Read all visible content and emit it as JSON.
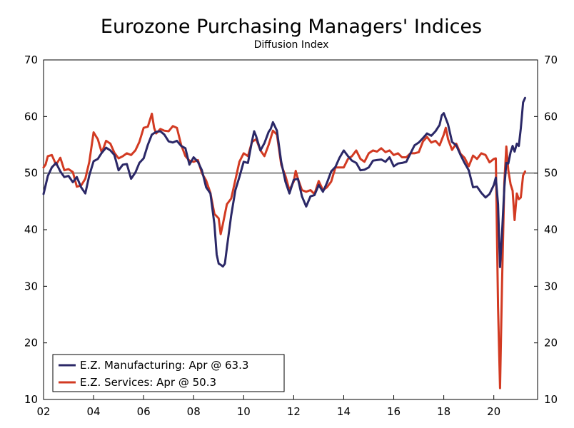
{
  "chart_data": {
    "type": "line",
    "title": "Eurozone Purchasing Managers' Indices",
    "subtitle": "Diffusion Index",
    "xlabel": "",
    "ylabel": "",
    "xlim": [
      2002.0,
      2021.75
    ],
    "ylim": [
      10,
      70
    ],
    "y_ticks": [
      10,
      20,
      30,
      40,
      50,
      60,
      70
    ],
    "x_ticks": [
      {
        "label": "02",
        "value": 2002
      },
      {
        "label": "04",
        "value": 2004
      },
      {
        "label": "06",
        "value": 2006
      },
      {
        "label": "08",
        "value": 2008
      },
      {
        "label": "10",
        "value": 2010
      },
      {
        "label": "12",
        "value": 2012
      },
      {
        "label": "14",
        "value": 2014
      },
      {
        "label": "16",
        "value": 2016
      },
      {
        "label": "18",
        "value": 2018
      },
      {
        "label": "20",
        "value": 2020
      }
    ],
    "reference_line": 50,
    "grid": false,
    "legend_position": "bottom-left",
    "series": [
      {
        "name": "E.Z. Manufacturing: Apr @ 63.3",
        "color": "#2b2867",
        "points": [
          [
            2002.0,
            46.3
          ],
          [
            2002.17,
            49.5
          ],
          [
            2002.33,
            51.0
          ],
          [
            2002.5,
            51.8
          ],
          [
            2002.67,
            50.3
          ],
          [
            2002.83,
            49.3
          ],
          [
            2003.0,
            49.5
          ],
          [
            2003.17,
            48.4
          ],
          [
            2003.33,
            49.3
          ],
          [
            2003.5,
            47.5
          ],
          [
            2003.67,
            46.4
          ],
          [
            2003.83,
            49.6
          ],
          [
            2004.0,
            52.1
          ],
          [
            2004.17,
            52.5
          ],
          [
            2004.33,
            53.6
          ],
          [
            2004.5,
            54.5
          ],
          [
            2004.67,
            54.0
          ],
          [
            2004.83,
            53.2
          ],
          [
            2005.0,
            50.5
          ],
          [
            2005.17,
            51.5
          ],
          [
            2005.33,
            51.6
          ],
          [
            2005.5,
            49.0
          ],
          [
            2005.67,
            50.1
          ],
          [
            2005.83,
            51.8
          ],
          [
            2006.0,
            52.6
          ],
          [
            2006.17,
            55.0
          ],
          [
            2006.33,
            56.8
          ],
          [
            2006.5,
            57.3
          ],
          [
            2006.67,
            57.4
          ],
          [
            2006.83,
            56.8
          ],
          [
            2007.0,
            55.6
          ],
          [
            2007.17,
            55.4
          ],
          [
            2007.33,
            55.7
          ],
          [
            2007.5,
            54.8
          ],
          [
            2007.67,
            54.4
          ],
          [
            2007.83,
            51.5
          ],
          [
            2008.0,
            52.8
          ],
          [
            2008.17,
            52.0
          ],
          [
            2008.33,
            50.5
          ],
          [
            2008.5,
            47.5
          ],
          [
            2008.67,
            46.4
          ],
          [
            2008.83,
            41.0
          ],
          [
            2008.92,
            35.6
          ],
          [
            2009.0,
            34.0
          ],
          [
            2009.08,
            33.8
          ],
          [
            2009.17,
            33.5
          ],
          [
            2009.25,
            34.0
          ],
          [
            2009.33,
            36.8
          ],
          [
            2009.5,
            42.5
          ],
          [
            2009.67,
            47.0
          ],
          [
            2009.83,
            49.3
          ],
          [
            2010.0,
            52.0
          ],
          [
            2010.17,
            51.8
          ],
          [
            2010.33,
            55.6
          ],
          [
            2010.42,
            57.4
          ],
          [
            2010.5,
            56.5
          ],
          [
            2010.67,
            54.0
          ],
          [
            2010.83,
            55.3
          ],
          [
            2011.0,
            57.3
          ],
          [
            2011.08,
            57.8
          ],
          [
            2011.17,
            59.0
          ],
          [
            2011.33,
            57.5
          ],
          [
            2011.5,
            52.0
          ],
          [
            2011.67,
            48.5
          ],
          [
            2011.83,
            46.4
          ],
          [
            2012.0,
            48.8
          ],
          [
            2012.17,
            49.0
          ],
          [
            2012.33,
            45.9
          ],
          [
            2012.5,
            44.1
          ],
          [
            2012.67,
            45.9
          ],
          [
            2012.83,
            46.1
          ],
          [
            2013.0,
            47.9
          ],
          [
            2013.17,
            46.7
          ],
          [
            2013.33,
            48.3
          ],
          [
            2013.5,
            50.3
          ],
          [
            2013.67,
            51.1
          ],
          [
            2013.83,
            52.7
          ],
          [
            2014.0,
            54.0
          ],
          [
            2014.17,
            53.0
          ],
          [
            2014.33,
            52.2
          ],
          [
            2014.5,
            51.8
          ],
          [
            2014.67,
            50.5
          ],
          [
            2014.83,
            50.6
          ],
          [
            2015.0,
            51.0
          ],
          [
            2015.17,
            52.2
          ],
          [
            2015.33,
            52.3
          ],
          [
            2015.5,
            52.4
          ],
          [
            2015.67,
            52.0
          ],
          [
            2015.83,
            52.8
          ],
          [
            2016.0,
            51.2
          ],
          [
            2016.17,
            51.7
          ],
          [
            2016.33,
            51.8
          ],
          [
            2016.5,
            52.0
          ],
          [
            2016.67,
            53.5
          ],
          [
            2016.83,
            54.9
          ],
          [
            2017.0,
            55.4
          ],
          [
            2017.17,
            56.2
          ],
          [
            2017.33,
            57.0
          ],
          [
            2017.5,
            56.6
          ],
          [
            2017.67,
            57.4
          ],
          [
            2017.83,
            58.5
          ],
          [
            2017.92,
            60.2
          ],
          [
            2018.0,
            60.6
          ],
          [
            2018.17,
            58.6
          ],
          [
            2018.33,
            55.5
          ],
          [
            2018.5,
            54.9
          ],
          [
            2018.67,
            53.2
          ],
          [
            2018.83,
            51.8
          ],
          [
            2019.0,
            50.5
          ],
          [
            2019.17,
            47.5
          ],
          [
            2019.33,
            47.6
          ],
          [
            2019.5,
            46.5
          ],
          [
            2019.67,
            45.7
          ],
          [
            2019.83,
            46.3
          ],
          [
            2020.0,
            47.9
          ],
          [
            2020.08,
            49.2
          ],
          [
            2020.17,
            44.5
          ],
          [
            2020.25,
            33.4
          ],
          [
            2020.33,
            39.4
          ],
          [
            2020.42,
            47.4
          ],
          [
            2020.5,
            51.8
          ],
          [
            2020.58,
            51.7
          ],
          [
            2020.67,
            53.7
          ],
          [
            2020.75,
            54.8
          ],
          [
            2020.83,
            53.8
          ],
          [
            2020.92,
            55.2
          ],
          [
            2021.0,
            54.8
          ],
          [
            2021.08,
            57.9
          ],
          [
            2021.17,
            62.5
          ],
          [
            2021.25,
            63.3
          ]
        ]
      },
      {
        "name": "E.Z. Services: Apr @ 50.3",
        "color": "#d23a22",
        "points": [
          [
            2002.0,
            51.0
          ],
          [
            2002.08,
            51.5
          ],
          [
            2002.17,
            53.0
          ],
          [
            2002.33,
            53.2
          ],
          [
            2002.5,
            51.5
          ],
          [
            2002.67,
            52.7
          ],
          [
            2002.83,
            50.5
          ],
          [
            2003.0,
            50.7
          ],
          [
            2003.17,
            50.2
          ],
          [
            2003.33,
            47.6
          ],
          [
            2003.5,
            47.8
          ],
          [
            2003.67,
            49.0
          ],
          [
            2003.83,
            52.0
          ],
          [
            2004.0,
            57.2
          ],
          [
            2004.17,
            56.0
          ],
          [
            2004.33,
            53.6
          ],
          [
            2004.5,
            55.7
          ],
          [
            2004.67,
            55.2
          ],
          [
            2004.83,
            53.6
          ],
          [
            2005.0,
            52.6
          ],
          [
            2005.17,
            53.0
          ],
          [
            2005.33,
            53.5
          ],
          [
            2005.5,
            53.2
          ],
          [
            2005.67,
            54.0
          ],
          [
            2005.83,
            55.5
          ],
          [
            2006.0,
            58.0
          ],
          [
            2006.17,
            58.2
          ],
          [
            2006.33,
            60.5
          ],
          [
            2006.42,
            58.0
          ],
          [
            2006.5,
            57.0
          ],
          [
            2006.67,
            57.8
          ],
          [
            2006.83,
            57.5
          ],
          [
            2007.0,
            57.4
          ],
          [
            2007.17,
            58.3
          ],
          [
            2007.33,
            58.0
          ],
          [
            2007.5,
            55.0
          ],
          [
            2007.67,
            53.0
          ],
          [
            2007.83,
            52.2
          ],
          [
            2008.0,
            52.0
          ],
          [
            2008.17,
            52.3
          ],
          [
            2008.33,
            50.0
          ],
          [
            2008.5,
            48.7
          ],
          [
            2008.67,
            46.5
          ],
          [
            2008.83,
            42.8
          ],
          [
            2009.0,
            42.0
          ],
          [
            2009.08,
            39.2
          ],
          [
            2009.17,
            41.0
          ],
          [
            2009.33,
            44.5
          ],
          [
            2009.5,
            45.5
          ],
          [
            2009.67,
            48.8
          ],
          [
            2009.83,
            52.0
          ],
          [
            2010.0,
            53.5
          ],
          [
            2010.17,
            53.0
          ],
          [
            2010.33,
            55.5
          ],
          [
            2010.5,
            56.0
          ],
          [
            2010.67,
            54.0
          ],
          [
            2010.83,
            53.0
          ],
          [
            2011.0,
            55.0
          ],
          [
            2011.17,
            57.5
          ],
          [
            2011.33,
            56.8
          ],
          [
            2011.5,
            51.5
          ],
          [
            2011.67,
            49.5
          ],
          [
            2011.83,
            47.0
          ],
          [
            2012.0,
            48.5
          ],
          [
            2012.08,
            50.4
          ],
          [
            2012.17,
            49.0
          ],
          [
            2012.33,
            47.0
          ],
          [
            2012.5,
            46.7
          ],
          [
            2012.67,
            47.0
          ],
          [
            2012.83,
            46.3
          ],
          [
            2013.0,
            48.6
          ],
          [
            2013.17,
            47.0
          ],
          [
            2013.33,
            47.5
          ],
          [
            2013.5,
            48.5
          ],
          [
            2013.67,
            51.0
          ],
          [
            2013.83,
            51.0
          ],
          [
            2014.0,
            51.0
          ],
          [
            2014.17,
            52.5
          ],
          [
            2014.33,
            53.0
          ],
          [
            2014.5,
            54.0
          ],
          [
            2014.67,
            52.5
          ],
          [
            2014.83,
            52.0
          ],
          [
            2015.0,
            53.5
          ],
          [
            2015.17,
            54.0
          ],
          [
            2015.33,
            53.8
          ],
          [
            2015.5,
            54.4
          ],
          [
            2015.67,
            53.7
          ],
          [
            2015.83,
            54.0
          ],
          [
            2016.0,
            53.2
          ],
          [
            2016.17,
            53.5
          ],
          [
            2016.33,
            52.8
          ],
          [
            2016.5,
            52.8
          ],
          [
            2016.67,
            53.5
          ],
          [
            2016.83,
            53.5
          ],
          [
            2017.0,
            53.7
          ],
          [
            2017.17,
            55.6
          ],
          [
            2017.33,
            56.4
          ],
          [
            2017.5,
            55.4
          ],
          [
            2017.67,
            55.7
          ],
          [
            2017.83,
            54.9
          ],
          [
            2018.0,
            56.8
          ],
          [
            2018.08,
            58.0
          ],
          [
            2018.17,
            56.0
          ],
          [
            2018.33,
            54.1
          ],
          [
            2018.5,
            55.2
          ],
          [
            2018.67,
            53.4
          ],
          [
            2018.83,
            52.7
          ],
          [
            2019.0,
            51.2
          ],
          [
            2019.17,
            53.1
          ],
          [
            2019.33,
            52.5
          ],
          [
            2019.5,
            53.5
          ],
          [
            2019.67,
            53.2
          ],
          [
            2019.83,
            51.9
          ],
          [
            2020.0,
            52.5
          ],
          [
            2020.08,
            52.6
          ],
          [
            2020.17,
            26.4
          ],
          [
            2020.25,
            12.0
          ],
          [
            2020.33,
            30.5
          ],
          [
            2020.42,
            48.3
          ],
          [
            2020.5,
            54.7
          ],
          [
            2020.58,
            50.5
          ],
          [
            2020.67,
            48.0
          ],
          [
            2020.75,
            46.9
          ],
          [
            2020.83,
            41.7
          ],
          [
            2020.92,
            46.4
          ],
          [
            2021.0,
            45.4
          ],
          [
            2021.08,
            45.7
          ],
          [
            2021.17,
            49.6
          ],
          [
            2021.25,
            50.3
          ]
        ]
      }
    ]
  }
}
